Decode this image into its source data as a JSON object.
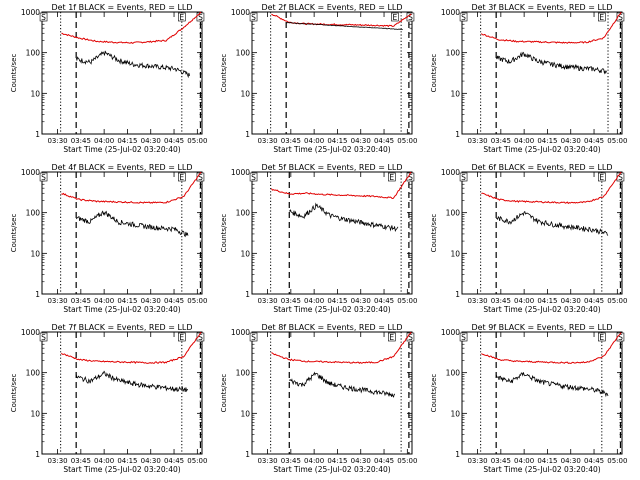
{
  "figure": {
    "xlabel": "Start Time (25-Jul-02 03:20:40)",
    "ylabel": "Counts/sec"
  },
  "chart_data": {
    "type": "line",
    "layout": "3x3 grid",
    "ylog": true,
    "ylim": [
      1,
      1000
    ],
    "yticks": [
      {
        "value": 1,
        "label": "1"
      },
      {
        "value": 10,
        "label": "10"
      },
      {
        "value": 100,
        "label": "100"
      },
      {
        "value": 1000,
        "label": "1000"
      }
    ],
    "xlim_minutes": [
      0,
      103
    ],
    "xticks": [
      {
        "value": 10,
        "label": "03:30"
      },
      {
        "value": 25,
        "label": "03:45"
      },
      {
        "value": 40,
        "label": "04:00"
      },
      {
        "value": 55,
        "label": "04:15"
      },
      {
        "value": 70,
        "label": "04:30"
      },
      {
        "value": 85,
        "label": "04:45"
      },
      {
        "value": 100,
        "label": "05:00"
      }
    ],
    "corner_markers": [
      "S",
      "E",
      "S"
    ],
    "panels": [
      {
        "title": "Det 1f BLACK = Events, RED = LLD",
        "llds": [
          300,
          230,
          190,
          180,
          175,
          185,
          200,
          420,
          1000
        ],
        "events": [
          70,
          58,
          100,
          65,
          52,
          48,
          44,
          40,
          28
        ],
        "ev_range": [
          22,
          95
        ],
        "dotted": [
          12,
          90
        ],
        "dashed": [
          22,
          102
        ],
        "markers": [
          1,
          90,
          102
        ]
      },
      {
        "title": "Det 2f BLACK = Events, RED = LLD",
        "llds": [
          900,
          560,
          510,
          500,
          490,
          480,
          470,
          450,
          900
        ],
        "events": [
          550,
          520,
          500,
          470,
          450,
          430,
          410,
          390,
          370
        ],
        "ev_range": [
          22,
          97
        ],
        "dotted": [
          12,
          96
        ],
        "dashed": [
          22,
          101
        ],
        "markers": [
          1,
          92,
          102
        ]
      },
      {
        "title": "Det 3f BLACK = Events, RED = LLD",
        "llds": [
          290,
          210,
          190,
          185,
          180,
          175,
          180,
          230,
          1000
        ],
        "events": [
          75,
          60,
          95,
          62,
          52,
          46,
          42,
          40,
          35
        ],
        "ev_range": [
          22,
          93
        ],
        "dotted": [
          12,
          94
        ],
        "dashed": [
          22,
          102
        ],
        "markers": [
          1,
          90,
          102
        ]
      },
      {
        "title": "Det 4f BLACK = Events, RED = LLD",
        "llds": [
          300,
          210,
          190,
          185,
          180,
          175,
          180,
          250,
          1000
        ],
        "events": [
          75,
          60,
          105,
          60,
          52,
          46,
          42,
          40,
          28
        ],
        "ev_range": [
          22,
          94
        ],
        "dotted": [
          12,
          90
        ],
        "dashed": [
          22,
          102
        ],
        "markers": [
          1,
          90,
          102
        ]
      },
      {
        "title": "Det 5f BLACK = Events, RED = LLD",
        "llds": [
          380,
          290,
          300,
          280,
          270,
          260,
          250,
          230,
          1000
        ],
        "events": [
          110,
          80,
          150,
          85,
          70,
          60,
          52,
          46,
          40
        ],
        "ev_range": [
          24,
          94
        ],
        "dotted": [
          12,
          96
        ],
        "dashed": [
          24,
          101
        ],
        "markers": [
          1,
          90,
          102
        ]
      },
      {
        "title": "Det 6f BLACK = Events, RED = LLD",
        "llds": [
          300,
          210,
          190,
          185,
          180,
          175,
          180,
          250,
          1000
        ],
        "events": [
          75,
          60,
          100,
          62,
          52,
          46,
          42,
          38,
          30
        ],
        "ev_range": [
          22,
          94
        ],
        "dotted": [
          12,
          90
        ],
        "dashed": [
          22,
          102
        ],
        "markers": [
          1,
          90,
          102
        ]
      },
      {
        "title": "Det 7f BLACK = Events, RED = LLD",
        "llds": [
          300,
          210,
          190,
          185,
          180,
          175,
          180,
          250,
          1000
        ],
        "events": [
          80,
          62,
          95,
          65,
          54,
          48,
          44,
          40,
          38
        ],
        "ev_range": [
          22,
          94
        ],
        "dotted": [
          12,
          90
        ],
        "dashed": [
          22,
          102
        ],
        "markers": [
          1,
          90,
          102
        ]
      },
      {
        "title": "Det 8f BLACK = Events, RED = LLD",
        "llds": [
          300,
          210,
          190,
          185,
          180,
          175,
          180,
          250,
          1000
        ],
        "events": [
          65,
          50,
          95,
          55,
          45,
          40,
          36,
          32,
          28
        ],
        "ev_range": [
          24,
          92
        ],
        "dotted": [
          12,
          96
        ],
        "dashed": [
          24,
          101
        ],
        "markers": [
          1,
          90,
          102
        ]
      },
      {
        "title": "Det 9f BLACK = Events, RED = LLD",
        "llds": [
          300,
          210,
          190,
          185,
          180,
          175,
          180,
          250,
          1000
        ],
        "events": [
          80,
          60,
          95,
          62,
          52,
          46,
          42,
          38,
          30
        ],
        "ev_range": [
          22,
          94
        ],
        "dotted": [
          12,
          90
        ],
        "dashed": [
          22,
          102
        ],
        "markers": [
          1,
          90,
          102
        ]
      }
    ]
  }
}
